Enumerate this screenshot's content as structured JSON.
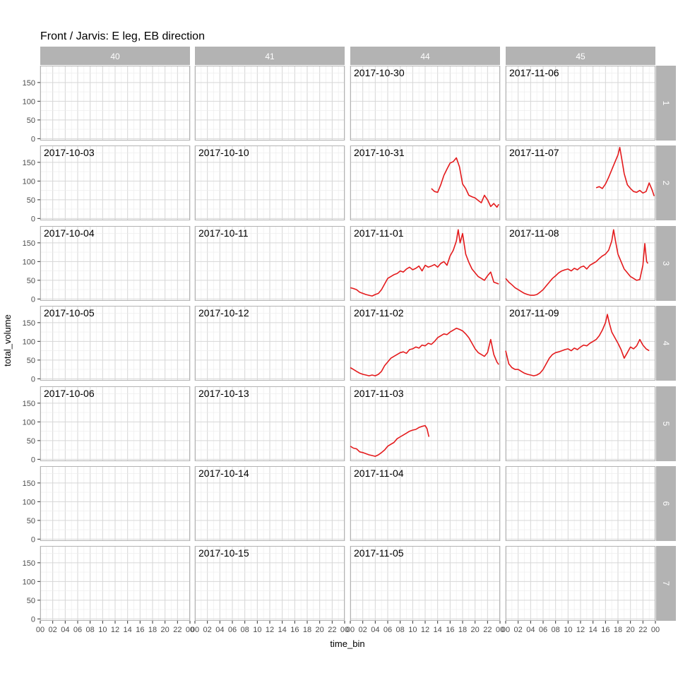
{
  "chart_data": {
    "type": "line",
    "title": "Front / Jarvis: E leg, EB direction",
    "xlabel": "time_bin",
    "ylabel": "total_volume",
    "ylim": [
      -5,
      195
    ],
    "yticks": [
      0,
      50,
      100,
      150
    ],
    "xlim": [
      0,
      24
    ],
    "xtick_labels": [
      "00",
      "02",
      "04",
      "06",
      "08",
      "10",
      "12",
      "14",
      "16",
      "18",
      "20",
      "22",
      "00"
    ],
    "grid": true,
    "line_color": "#e41a1c",
    "strip_color": "#b3b3b3",
    "columns": [
      "40",
      "41",
      "44",
      "45"
    ],
    "rows": [
      "1",
      "2",
      "3",
      "4",
      "5",
      "6",
      "7"
    ],
    "panels": [
      {
        "col": 0,
        "row": 1,
        "date": "2017-10-03"
      },
      {
        "col": 0,
        "row": 2,
        "date": "2017-10-04"
      },
      {
        "col": 0,
        "row": 3,
        "date": "2017-10-05"
      },
      {
        "col": 0,
        "row": 4,
        "date": "2017-10-06"
      },
      {
        "col": 1,
        "row": 1,
        "date": "2017-10-10"
      },
      {
        "col": 1,
        "row": 2,
        "date": "2017-10-11"
      },
      {
        "col": 1,
        "row": 3,
        "date": "2017-10-12"
      },
      {
        "col": 1,
        "row": 4,
        "date": "2017-10-13"
      },
      {
        "col": 1,
        "row": 5,
        "date": "2017-10-14"
      },
      {
        "col": 1,
        "row": 6,
        "date": "2017-10-15"
      },
      {
        "col": 2,
        "row": 0,
        "date": "2017-10-30"
      },
      {
        "col": 2,
        "row": 1,
        "date": "2017-10-31",
        "series": [
          [
            13,
            80
          ],
          [
            13.5,
            72
          ],
          [
            14,
            70
          ],
          [
            14.5,
            90
          ],
          [
            15,
            115
          ],
          [
            15.5,
            132
          ],
          [
            16,
            148
          ],
          [
            16.5,
            152
          ],
          [
            17,
            162
          ],
          [
            17.5,
            138
          ],
          [
            18,
            92
          ],
          [
            18.5,
            80
          ],
          [
            19,
            62
          ],
          [
            19.5,
            58
          ],
          [
            20,
            55
          ],
          [
            20.5,
            48
          ],
          [
            21,
            42
          ],
          [
            21.5,
            62
          ],
          [
            22,
            50
          ],
          [
            22.5,
            32
          ],
          [
            23,
            40
          ],
          [
            23.5,
            30
          ],
          [
            23.8,
            38
          ]
        ]
      },
      {
        "col": 2,
        "row": 2,
        "date": "2017-11-01",
        "series": [
          [
            0,
            30
          ],
          [
            0.5,
            28
          ],
          [
            1,
            25
          ],
          [
            1.5,
            18
          ],
          [
            2,
            15
          ],
          [
            2.5,
            12
          ],
          [
            3,
            10
          ],
          [
            3.5,
            8
          ],
          [
            4,
            12
          ],
          [
            4.5,
            15
          ],
          [
            5,
            25
          ],
          [
            5.5,
            40
          ],
          [
            6,
            55
          ],
          [
            6.5,
            60
          ],
          [
            7,
            65
          ],
          [
            7.5,
            68
          ],
          [
            8,
            75
          ],
          [
            8.5,
            72
          ],
          [
            9,
            80
          ],
          [
            9.5,
            85
          ],
          [
            10,
            78
          ],
          [
            10.5,
            82
          ],
          [
            11,
            88
          ],
          [
            11.5,
            75
          ],
          [
            12,
            90
          ],
          [
            12.5,
            85
          ],
          [
            13,
            88
          ],
          [
            13.5,
            92
          ],
          [
            14,
            85
          ],
          [
            14.5,
            95
          ],
          [
            15,
            100
          ],
          [
            15.5,
            90
          ],
          [
            16,
            115
          ],
          [
            16.5,
            130
          ],
          [
            17,
            155
          ],
          [
            17.3,
            185
          ],
          [
            17.6,
            150
          ],
          [
            18,
            175
          ],
          [
            18.5,
            120
          ],
          [
            19,
            98
          ],
          [
            19.5,
            80
          ],
          [
            20,
            70
          ],
          [
            20.5,
            60
          ],
          [
            21,
            55
          ],
          [
            21.5,
            50
          ],
          [
            22,
            62
          ],
          [
            22.5,
            72
          ],
          [
            23,
            45
          ],
          [
            23.5,
            42
          ],
          [
            23.8,
            40
          ]
        ]
      },
      {
        "col": 2,
        "row": 3,
        "date": "2017-11-02",
        "series": [
          [
            0,
            30
          ],
          [
            0.5,
            25
          ],
          [
            1,
            20
          ],
          [
            1.5,
            15
          ],
          [
            2,
            12
          ],
          [
            2.5,
            10
          ],
          [
            3,
            8
          ],
          [
            3.5,
            10
          ],
          [
            4,
            8
          ],
          [
            4.5,
            12
          ],
          [
            5,
            20
          ],
          [
            5.5,
            35
          ],
          [
            6,
            45
          ],
          [
            6.5,
            55
          ],
          [
            7,
            60
          ],
          [
            7.5,
            65
          ],
          [
            8,
            70
          ],
          [
            8.5,
            72
          ],
          [
            9,
            68
          ],
          [
            9.5,
            78
          ],
          [
            10,
            80
          ],
          [
            10.5,
            85
          ],
          [
            11,
            82
          ],
          [
            11.5,
            90
          ],
          [
            12,
            88
          ],
          [
            12.5,
            95
          ],
          [
            13,
            92
          ],
          [
            13.5,
            100
          ],
          [
            14,
            110
          ],
          [
            14.5,
            115
          ],
          [
            15,
            120
          ],
          [
            15.5,
            118
          ],
          [
            16,
            125
          ],
          [
            16.5,
            130
          ],
          [
            17,
            135
          ],
          [
            17.5,
            132
          ],
          [
            18,
            128
          ],
          [
            18.5,
            120
          ],
          [
            19,
            110
          ],
          [
            19.5,
            95
          ],
          [
            20,
            80
          ],
          [
            20.5,
            70
          ],
          [
            21,
            65
          ],
          [
            21.5,
            60
          ],
          [
            22,
            70
          ],
          [
            22.5,
            105
          ],
          [
            23,
            65
          ],
          [
            23.5,
            45
          ],
          [
            23.8,
            38
          ]
        ]
      },
      {
        "col": 2,
        "row": 4,
        "date": "2017-11-03",
        "series": [
          [
            0,
            35
          ],
          [
            0.5,
            30
          ],
          [
            1,
            28
          ],
          [
            1.5,
            20
          ],
          [
            2,
            18
          ],
          [
            2.5,
            15
          ],
          [
            3,
            12
          ],
          [
            3.5,
            10
          ],
          [
            4,
            8
          ],
          [
            4.5,
            12
          ],
          [
            5,
            18
          ],
          [
            5.5,
            25
          ],
          [
            6,
            35
          ],
          [
            6.5,
            40
          ],
          [
            7,
            45
          ],
          [
            7.5,
            55
          ],
          [
            8,
            60
          ],
          [
            8.5,
            65
          ],
          [
            9,
            70
          ],
          [
            9.5,
            75
          ],
          [
            10,
            78
          ],
          [
            10.5,
            80
          ],
          [
            11,
            85
          ],
          [
            11.5,
            88
          ],
          [
            12,
            90
          ],
          [
            12.3,
            82
          ],
          [
            12.6,
            60
          ]
        ]
      },
      {
        "col": 2,
        "row": 5,
        "date": "2017-11-04"
      },
      {
        "col": 2,
        "row": 6,
        "date": "2017-11-05"
      },
      {
        "col": 3,
        "row": 0,
        "date": "2017-11-06"
      },
      {
        "col": 3,
        "row": 1,
        "date": "2017-11-07",
        "series": [
          [
            14.5,
            82
          ],
          [
            15,
            85
          ],
          [
            15.5,
            80
          ],
          [
            16,
            92
          ],
          [
            16.5,
            110
          ],
          [
            17,
            130
          ],
          [
            17.5,
            150
          ],
          [
            18,
            170
          ],
          [
            18.3,
            190
          ],
          [
            18.6,
            160
          ],
          [
            19,
            120
          ],
          [
            19.5,
            90
          ],
          [
            20,
            80
          ],
          [
            20.5,
            72
          ],
          [
            21,
            70
          ],
          [
            21.5,
            75
          ],
          [
            22,
            68
          ],
          [
            22.5,
            72
          ],
          [
            23,
            95
          ],
          [
            23.5,
            75
          ],
          [
            23.8,
            60
          ]
        ]
      },
      {
        "col": 3,
        "row": 2,
        "date": "2017-11-08",
        "series": [
          [
            0,
            55
          ],
          [
            0.5,
            45
          ],
          [
            1,
            38
          ],
          [
            1.5,
            30
          ],
          [
            2,
            25
          ],
          [
            2.5,
            20
          ],
          [
            3,
            15
          ],
          [
            3.5,
            12
          ],
          [
            4,
            10
          ],
          [
            4.5,
            10
          ],
          [
            5,
            12
          ],
          [
            5.5,
            18
          ],
          [
            6,
            25
          ],
          [
            6.5,
            35
          ],
          [
            7,
            45
          ],
          [
            7.5,
            55
          ],
          [
            8,
            62
          ],
          [
            8.5,
            70
          ],
          [
            9,
            75
          ],
          [
            9.5,
            78
          ],
          [
            10,
            80
          ],
          [
            10.5,
            75
          ],
          [
            11,
            82
          ],
          [
            11.5,
            78
          ],
          [
            12,
            85
          ],
          [
            12.5,
            88
          ],
          [
            13,
            80
          ],
          [
            13.5,
            90
          ],
          [
            14,
            95
          ],
          [
            14.5,
            100
          ],
          [
            15,
            108
          ],
          [
            15.5,
            115
          ],
          [
            16,
            120
          ],
          [
            16.5,
            130
          ],
          [
            17,
            155
          ],
          [
            17.3,
            185
          ],
          [
            17.6,
            155
          ],
          [
            18,
            120
          ],
          [
            18.5,
            100
          ],
          [
            19,
            80
          ],
          [
            19.5,
            70
          ],
          [
            20,
            60
          ],
          [
            20.5,
            55
          ],
          [
            21,
            50
          ],
          [
            21.5,
            52
          ],
          [
            22,
            90
          ],
          [
            22.3,
            148
          ],
          [
            22.6,
            100
          ],
          [
            22.8,
            95
          ]
        ]
      },
      {
        "col": 3,
        "row": 3,
        "date": "2017-11-09",
        "series": [
          [
            0,
            75
          ],
          [
            0.5,
            40
          ],
          [
            1,
            30
          ],
          [
            1.5,
            25
          ],
          [
            2,
            25
          ],
          [
            2.5,
            20
          ],
          [
            3,
            15
          ],
          [
            3.5,
            12
          ],
          [
            4,
            10
          ],
          [
            4.5,
            8
          ],
          [
            5,
            10
          ],
          [
            5.5,
            15
          ],
          [
            6,
            25
          ],
          [
            6.5,
            40
          ],
          [
            7,
            55
          ],
          [
            7.5,
            65
          ],
          [
            8,
            70
          ],
          [
            8.5,
            72
          ],
          [
            9,
            75
          ],
          [
            9.5,
            78
          ],
          [
            10,
            80
          ],
          [
            10.5,
            75
          ],
          [
            11,
            82
          ],
          [
            11.5,
            78
          ],
          [
            12,
            85
          ],
          [
            12.5,
            90
          ],
          [
            13,
            88
          ],
          [
            13.5,
            95
          ],
          [
            14,
            100
          ],
          [
            14.5,
            105
          ],
          [
            15,
            115
          ],
          [
            15.5,
            130
          ],
          [
            16,
            150
          ],
          [
            16.3,
            172
          ],
          [
            16.6,
            150
          ],
          [
            17,
            125
          ],
          [
            17.5,
            110
          ],
          [
            18,
            95
          ],
          [
            18.5,
            78
          ],
          [
            19,
            55
          ],
          [
            19.5,
            70
          ],
          [
            20,
            85
          ],
          [
            20.5,
            80
          ],
          [
            21,
            88
          ],
          [
            21.5,
            105
          ],
          [
            22,
            90
          ],
          [
            22.5,
            80
          ],
          [
            23,
            75
          ]
        ]
      },
      {
        "col": 3,
        "row": 4
      },
      {
        "col": 3,
        "row": 5
      },
      {
        "col": 3,
        "row": 6
      },
      {
        "col": 0,
        "row": 0
      },
      {
        "col": 0,
        "row": 5
      },
      {
        "col": 0,
        "row": 6
      },
      {
        "col": 1,
        "row": 0
      }
    ]
  }
}
